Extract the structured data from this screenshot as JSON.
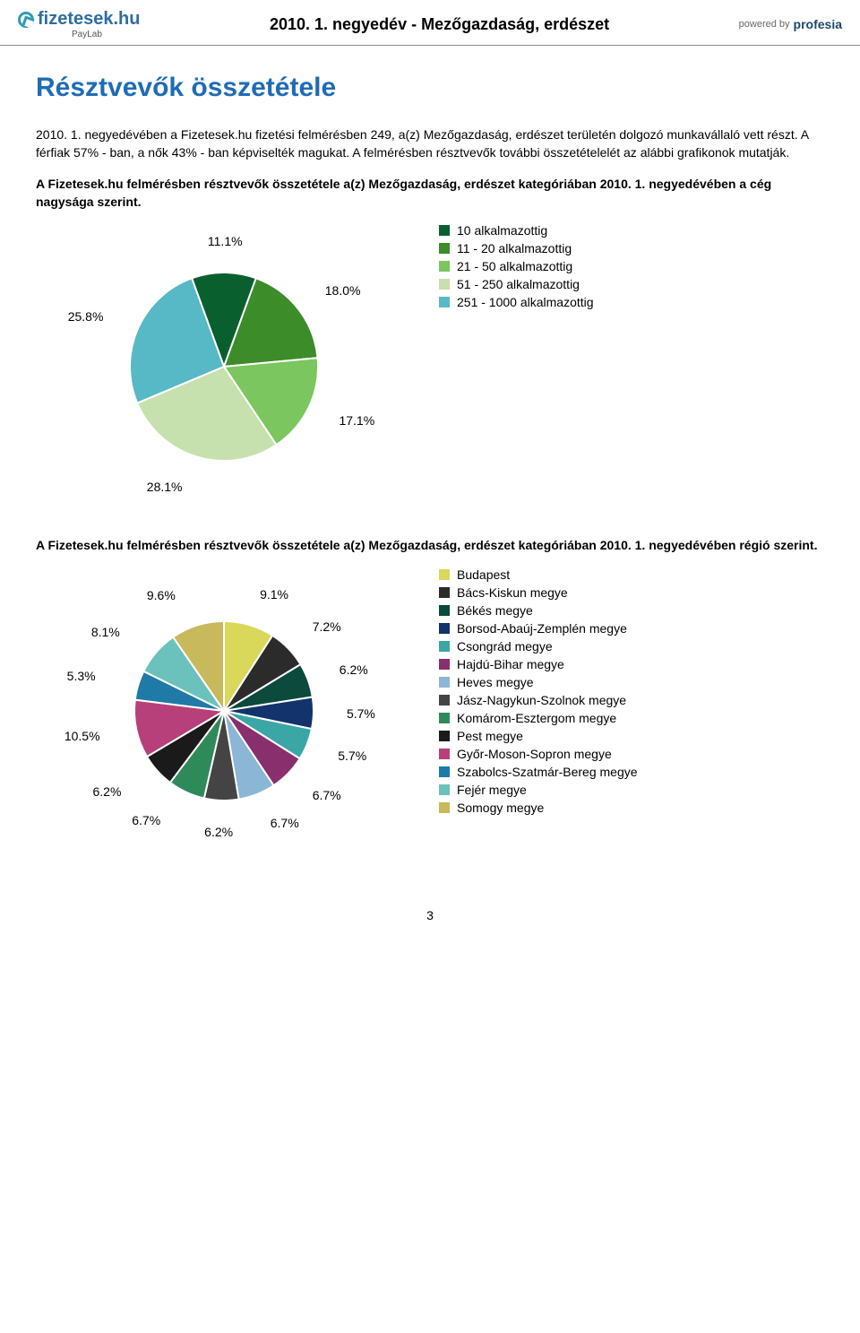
{
  "header": {
    "brand": "fizetesek.hu",
    "sub_brand": "PayLab",
    "title": "2010. 1. negyedév - Mezőgazdaság, erdészet",
    "powered_prefix": "powered by",
    "powered_brand": "profesia"
  },
  "section_title": "Résztvevők összetétele",
  "intro_text": "2010. 1. negyedévében a Fizetesek.hu fizetési felmérésben 249, a(z) Mezőgazdaság, erdészet területén dolgozó munkavállaló vett részt. A férfiak 57% - ban, a nők 43% - ban képviselték magukat. A felmérésben résztvevők további összetételelét az alábbi grafikonok mutatják.",
  "chart1": {
    "heading": "A Fizetesek.hu felmérésben résztvevők összetétele a(z) Mezőgazdaság, erdészet kategóriában 2010. 1. negyedévében a cég nagysága szerint.",
    "type": "pie",
    "background_color": "#ffffff",
    "label_fontsize": 14,
    "label_color": "#000000",
    "legend_fontsize": 14,
    "pie_stroke": "#ffffff",
    "pie_stroke_width": 2,
    "slices": [
      {
        "label": "10 alkalmazottig",
        "value": 11.1,
        "color": "#0a5f2e",
        "tag": "11.1%"
      },
      {
        "label": "11 - 20 alkalmazottig",
        "value": 18.0,
        "color": "#3c8c2a",
        "tag": "18.0%"
      },
      {
        "label": "21 - 50 alkalmazottig",
        "value": 17.1,
        "color": "#7bc65e",
        "tag": "17.1%"
      },
      {
        "label": "51 - 250 alkalmazottig",
        "value": 28.1,
        "color": "#c6e0ae",
        "tag": "28.1%"
      },
      {
        "label": "251 - 1000 alkalmazottig",
        "value": 25.8,
        "color": "#57b9c6",
        "tag": "25.8%"
      }
    ]
  },
  "chart2": {
    "heading": "A Fizetesek.hu felmérésben résztvevők összetétele a(z) Mezőgazdaság, erdészet kategóriában 2010. 1. negyedévében régió szerint.",
    "type": "pie",
    "background_color": "#ffffff",
    "label_fontsize": 14,
    "label_color": "#000000",
    "legend_fontsize": 14,
    "pie_stroke": "#ffffff",
    "pie_stroke_width": 2,
    "slices": [
      {
        "label": "Budapest",
        "value": 9.1,
        "color": "#d9d85a",
        "tag": "9.1%"
      },
      {
        "label": "Bács-Kiskun megye",
        "value": 7.2,
        "color": "#2b2b2b",
        "tag": "7.2%"
      },
      {
        "label": "Békés megye",
        "value": 6.2,
        "color": "#0b4a3c",
        "tag": "6.2%"
      },
      {
        "label": "Borsod-Abaúj-Zemplén megye",
        "value": 5.7,
        "color": "#12336b",
        "tag": "5.7%"
      },
      {
        "label": "Csongrád megye",
        "value": 5.7,
        "color": "#3aa6a6",
        "tag": "5.7%"
      },
      {
        "label": "Hajdú-Bihar megye",
        "value": 6.7,
        "color": "#8a2f6e",
        "tag": "6.7%"
      },
      {
        "label": "Heves megye",
        "value": 6.7,
        "color": "#8bb6d6",
        "tag": "6.7%"
      },
      {
        "label": "Jász-Nagykun-Szolnok megye",
        "value": 6.2,
        "color": "#444444",
        "tag": "6.2%"
      },
      {
        "label": "Komárom-Esztergom megye",
        "value": 6.7,
        "color": "#2f8a5a",
        "tag": "6.7%"
      },
      {
        "label": "Pest megye",
        "value": 6.2,
        "color": "#1a1a1a",
        "tag": "6.2%"
      },
      {
        "label": "Győr-Moson-Sopron megye",
        "value": 10.5,
        "color": "#b8407a",
        "tag": "10.5%"
      },
      {
        "label": "Szabolcs-Szatmár-Bereg megye",
        "value": 5.3,
        "color": "#1f7aa8",
        "tag": "5.3%"
      },
      {
        "label": "Fejér megye",
        "value": 8.1,
        "color": "#6bc2bc",
        "tag": "8.1%"
      },
      {
        "label": "Somogy megye",
        "value": 9.6,
        "color": "#c8b95c",
        "tag": "9.6%"
      }
    ]
  },
  "page_number": "3"
}
